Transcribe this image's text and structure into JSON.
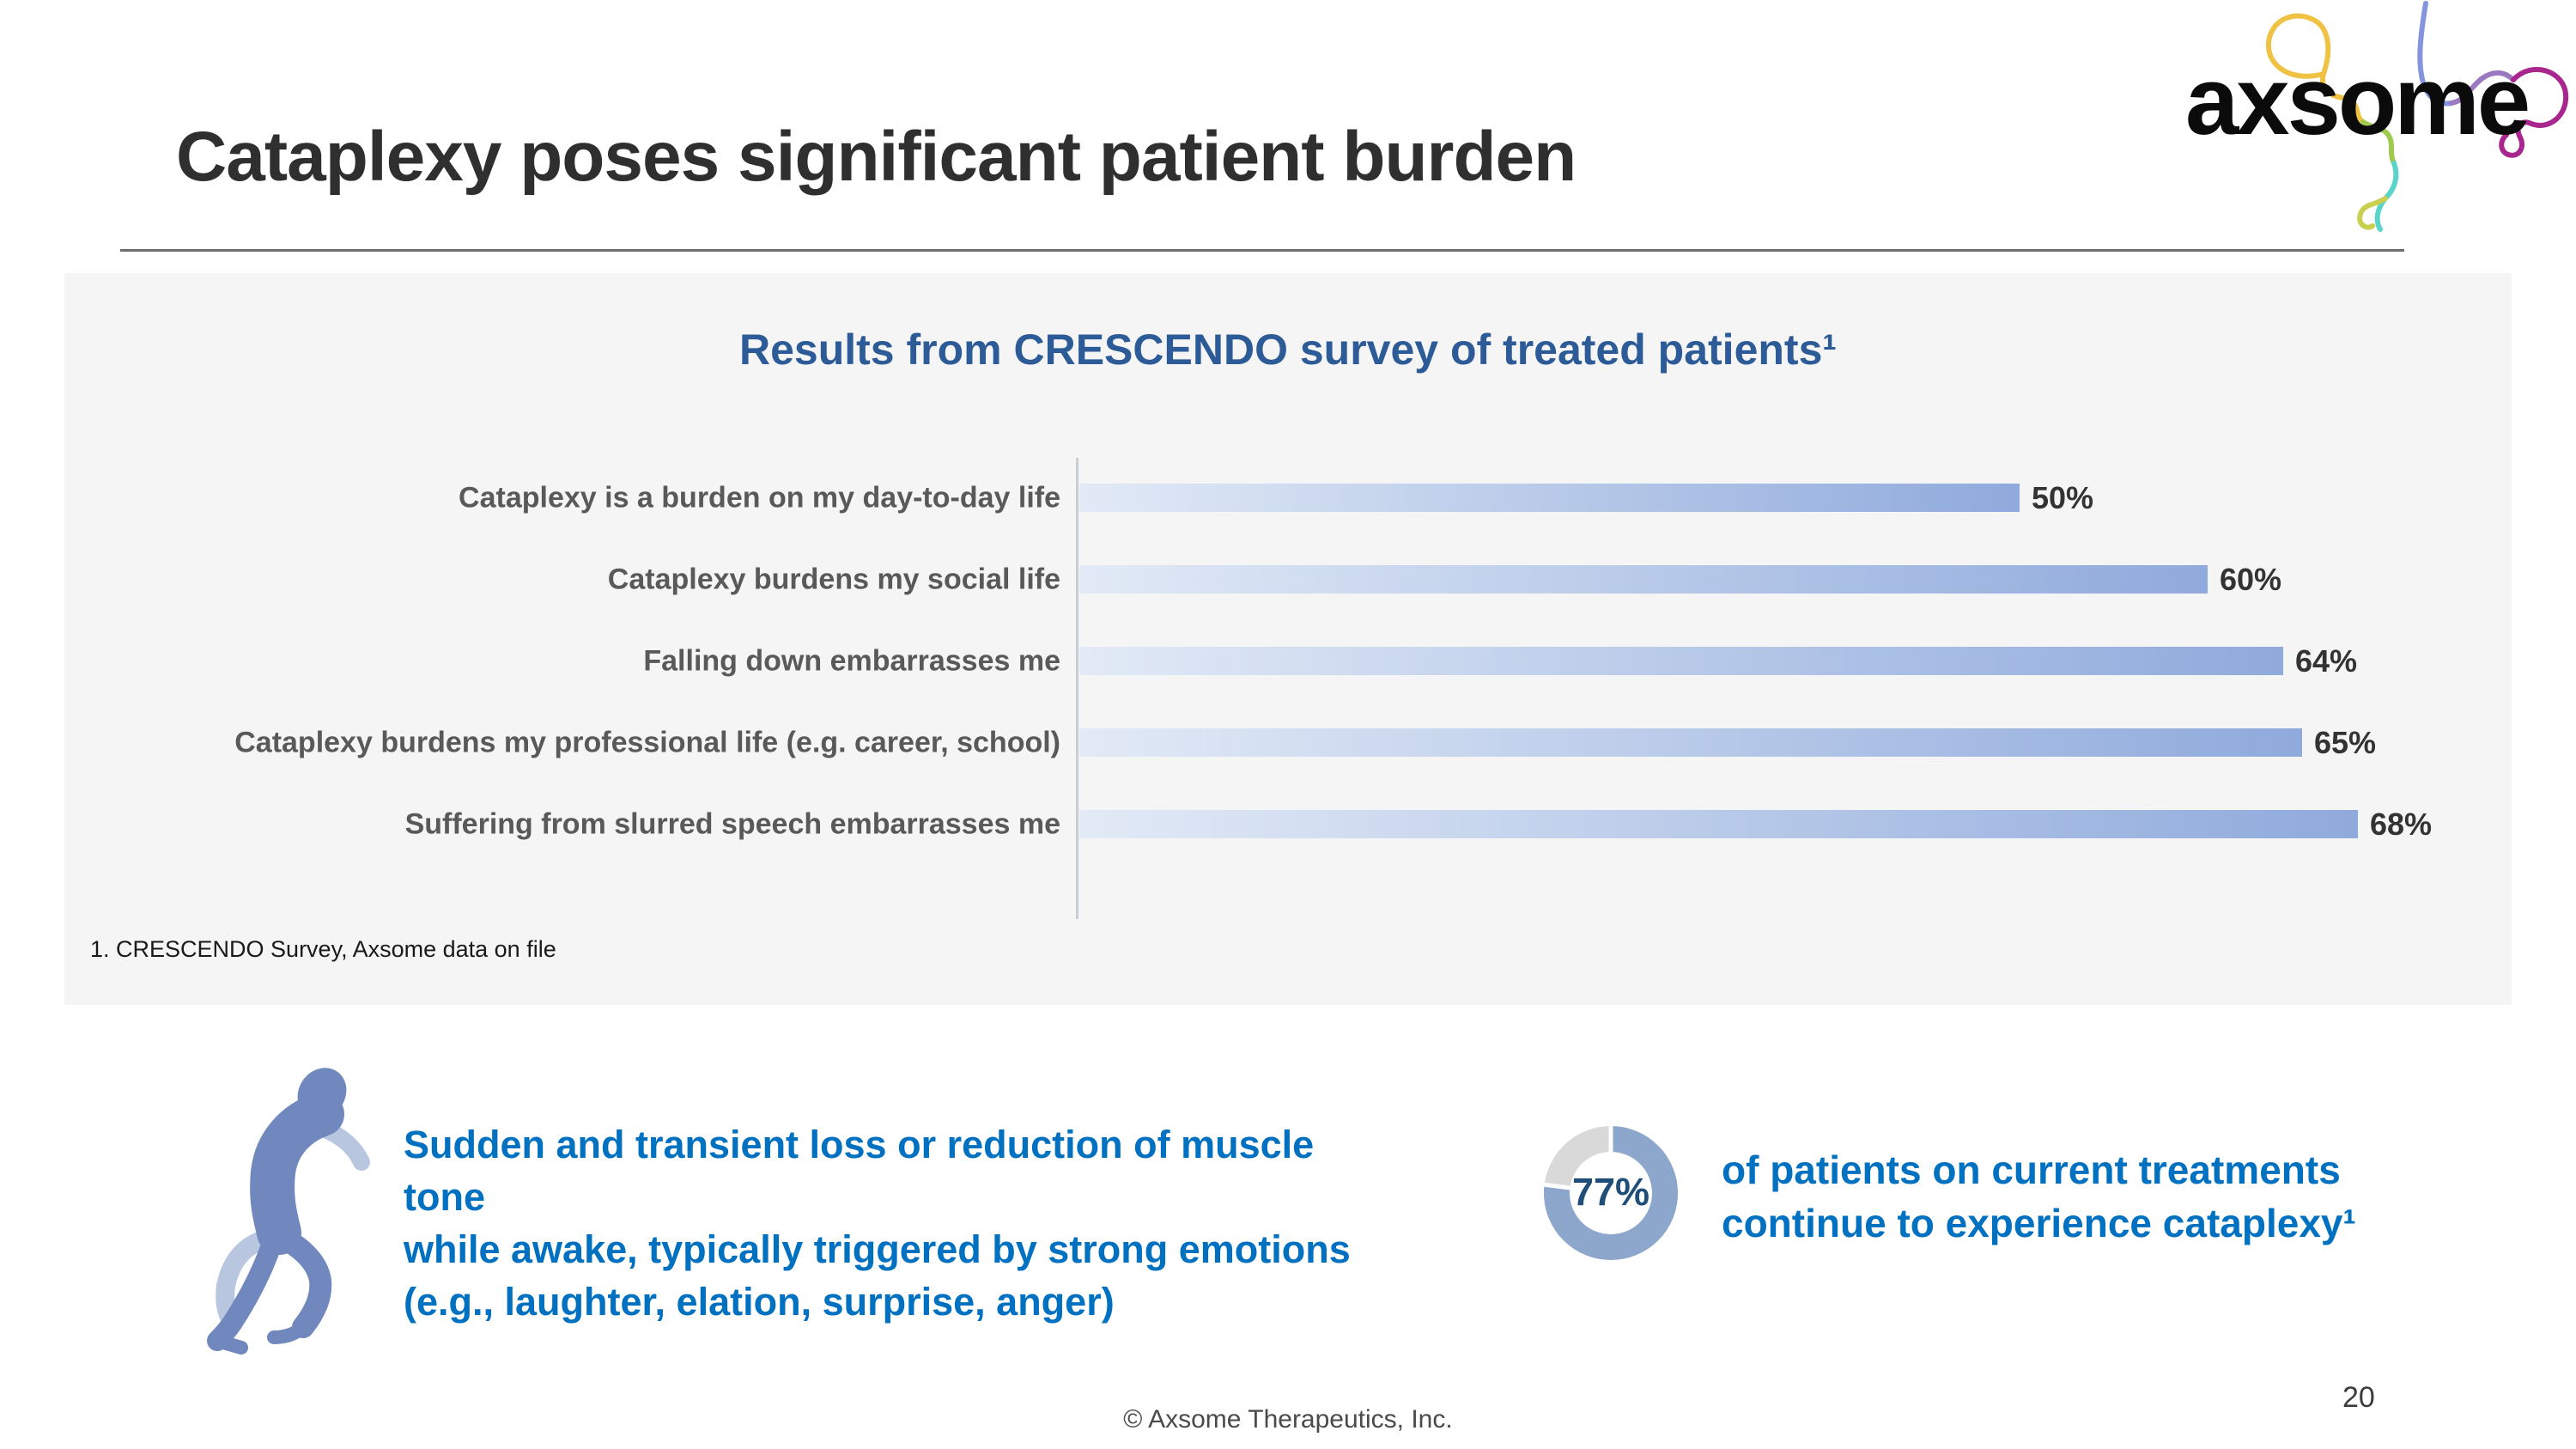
{
  "slide": {
    "title": "Cataplexy poses significant patient burden",
    "footer": "© Axsome Therapeutics, Inc.",
    "page_number": "20"
  },
  "logo": {
    "wordmark": "axsome"
  },
  "chart_panel": {
    "footnote": "1. CRESCENDO Survey, Axsome data on file"
  },
  "chart_data": [
    {
      "type": "bar",
      "orientation": "horizontal",
      "title": "Results from CRESCENDO survey of treated patients¹",
      "categories": [
        "Cataplexy is a burden on my day-to-day life",
        "Cataplexy burdens my social life",
        "Falling down embarrasses me",
        "Cataplexy burdens my professional life (e.g. career, school)",
        "Suffering from slurred speech embarrasses me"
      ],
      "values": [
        50,
        60,
        64,
        65,
        68
      ],
      "value_labels": [
        "50%",
        "60%",
        "64%",
        "65%",
        "68%"
      ],
      "xlim": [
        0,
        70
      ],
      "grid": false,
      "value_label_position": "end",
      "bar_gradient": [
        "#e2eaf6",
        "#8faadc"
      ]
    },
    {
      "type": "pie",
      "subtype": "donut",
      "values": [
        77,
        23
      ],
      "colors": [
        "#8da6cc",
        "#d9d9d9"
      ],
      "center_label": "77%",
      "start_angle_deg": 0,
      "direction": "clockwise"
    }
  ],
  "definition": {
    "lines": [
      "Sudden and transient loss or reduction of muscle",
      "tone",
      "while awake, typically triggered by strong emotions",
      "(e.g., laughter, elation, surprise, anger)"
    ]
  },
  "stat": {
    "value": 77,
    "lines": [
      "of patients on current treatments",
      "continue to experience cataplexy¹"
    ]
  },
  "colors": {
    "accent_blue": "#0070c0",
    "heading_blue": "#2d5b97",
    "dark_navy": "#1f4e79",
    "label_gray": "#595959",
    "bar_start": "#e2eaf6",
    "bar_end": "#8faadc",
    "donut_blue": "#8da6cc",
    "donut_gray": "#d9d9d9",
    "panel_bg": "#f5f5f6"
  }
}
